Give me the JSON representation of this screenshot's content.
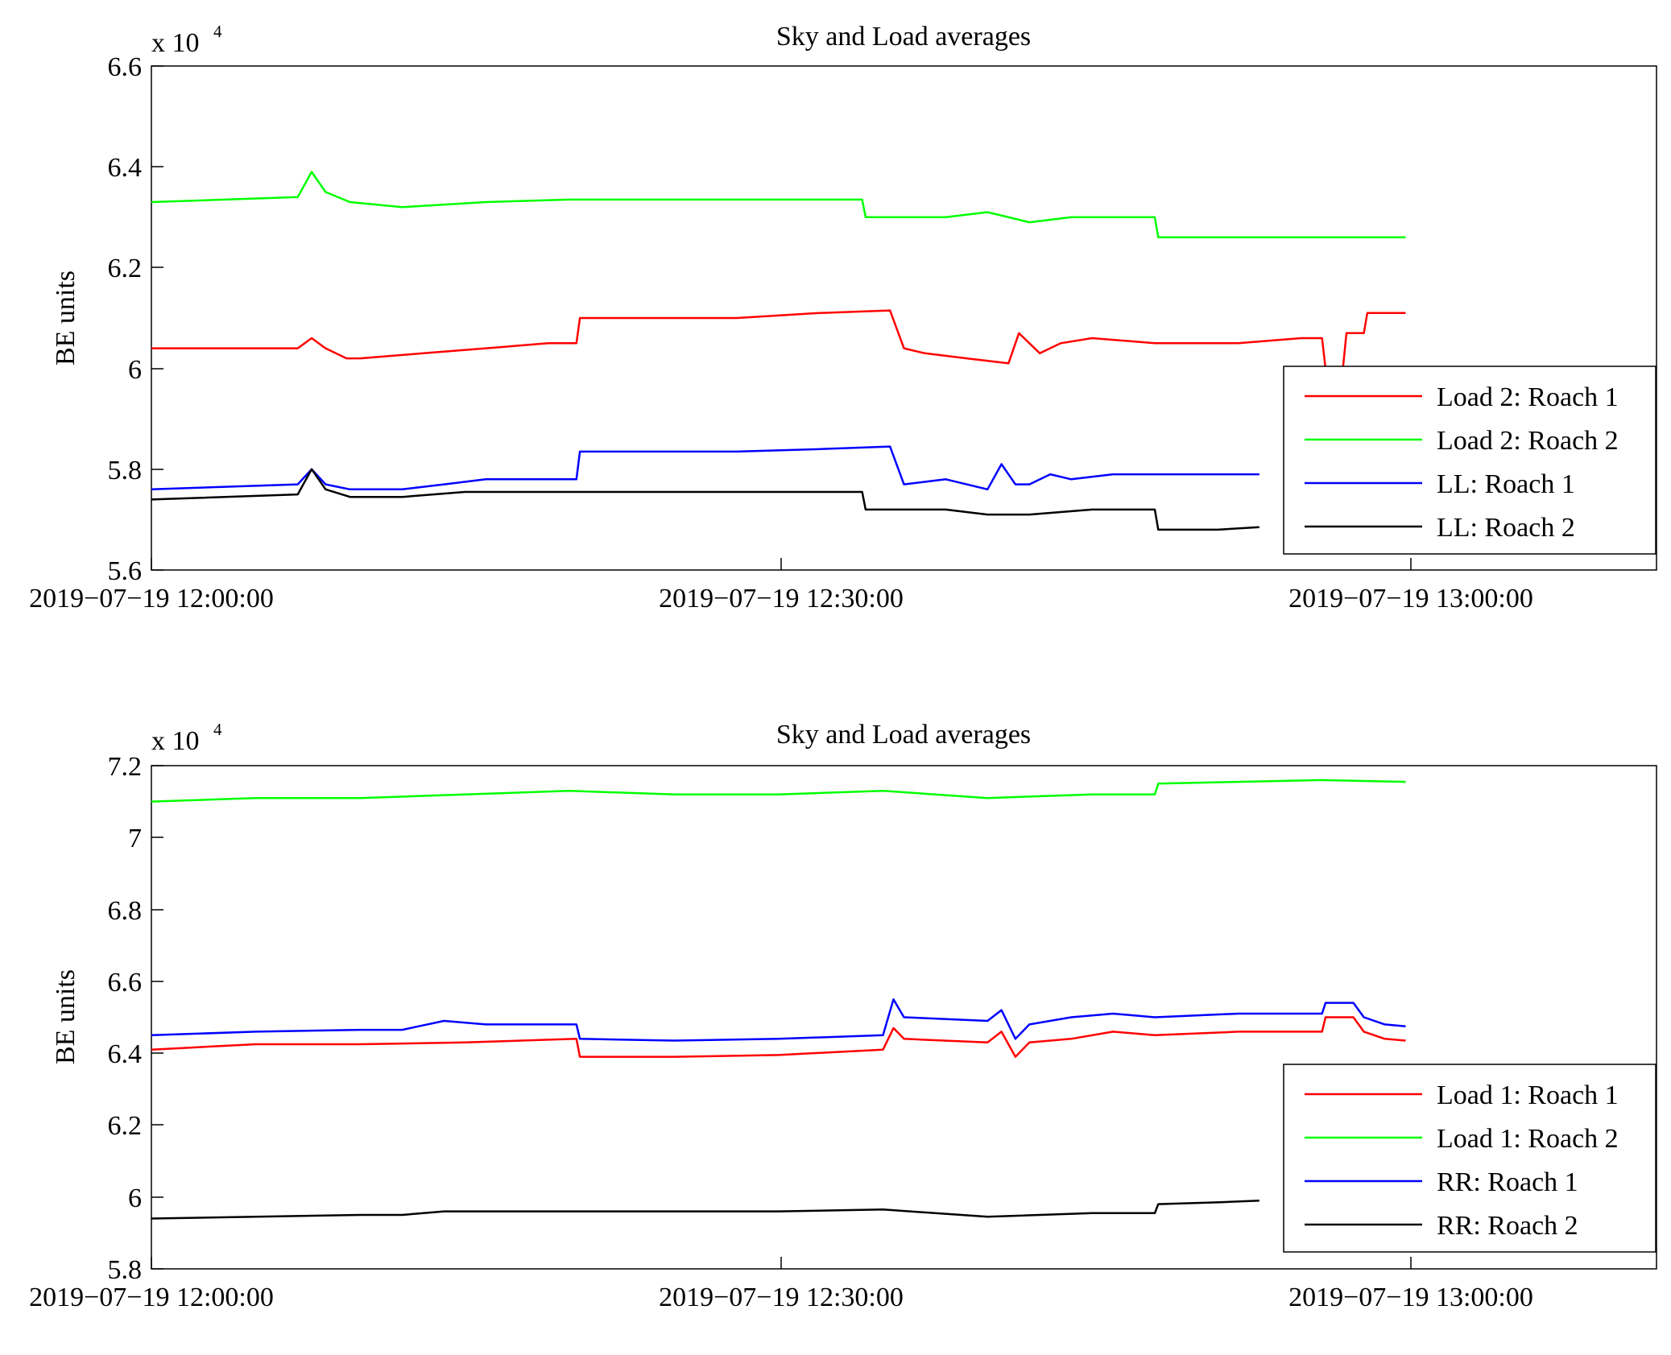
{
  "chart_data": [
    {
      "type": "line",
      "title": "Sky and Load averages",
      "ylabel": "BE units",
      "y_multiplier": "x 10",
      "y_multiplier_exponent": "4",
      "ylim": [
        5.6,
        6.6
      ],
      "yticks": [
        5.6,
        5.8,
        6.0,
        6.2,
        6.4,
        6.6
      ],
      "ytick_labels": [
        "5.6",
        "5.8",
        "6",
        "6.2",
        "6.4",
        "6.6"
      ],
      "xlim": [
        "2019-07-19 12:00:00",
        "2019-07-19 13:12:00"
      ],
      "xticks": [
        "2019-07-19 12:00:00",
        "2019-07-19 12:30:00",
        "2019-07-19 13:00:00"
      ],
      "xtick_labels": [
        "2019−07−19 12:00:00",
        "2019−07−19 12:30:00",
        "2019−07−19 13:00:00"
      ],
      "legend_position": "bottom-right",
      "grid": false,
      "series": [
        {
          "name": "Load 2: Roach 1",
          "color": "#ff0000",
          "x": [
            "2019-07-19 12:00:00",
            "2019-07-19 12:07:00",
            "2019-07-19 12:07:40",
            "2019-07-19 12:08:20",
            "2019-07-19 12:09:20",
            "2019-07-19 12:10:00",
            "2019-07-19 12:13:00",
            "2019-07-19 12:16:00",
            "2019-07-19 12:19:00",
            "2019-07-19 12:20:20",
            "2019-07-19 12:20:30",
            "2019-07-19 12:24:00",
            "2019-07-19 12:28:00",
            "2019-07-19 12:32:00",
            "2019-07-19 12:35:20",
            "2019-07-19 12:36:00",
            "2019-07-19 12:37:00",
            "2019-07-19 12:39:00",
            "2019-07-19 12:41:00",
            "2019-07-19 12:41:30",
            "2019-07-19 12:42:30",
            "2019-07-19 12:43:30",
            "2019-07-19 12:45:00",
            "2019-07-19 12:48:00",
            "2019-07-19 12:52:00",
            "2019-07-19 12:55:00",
            "2019-07-19 12:56:00",
            "2019-07-19 12:56:10",
            "2019-07-19 12:57:00",
            "2019-07-19 12:57:10",
            "2019-07-19 12:58:00",
            "2019-07-19 12:58:10",
            "2019-07-19 12:59:00",
            "2019-07-19 13:00:00"
          ],
          "y": [
            6.04,
            6.04,
            6.06,
            6.04,
            6.02,
            6.02,
            6.03,
            6.04,
            6.05,
            6.05,
            6.1,
            6.1,
            6.1,
            6.11,
            6.115,
            6.04,
            6.03,
            6.02,
            6.01,
            6.07,
            6.03,
            6.05,
            6.06,
            6.05,
            6.05,
            6.06,
            6.06,
            6.0,
            6.0,
            6.07,
            6.07,
            6.11,
            6.11,
            6.11
          ]
        },
        {
          "name": "Load 2: Roach 2",
          "color": "#00ff00",
          "x": [
            "2019-07-19 12:00:00",
            "2019-07-19 12:07:00",
            "2019-07-19 12:07:40",
            "2019-07-19 12:08:20",
            "2019-07-19 12:09:30",
            "2019-07-19 12:12:00",
            "2019-07-19 12:16:00",
            "2019-07-19 12:20:00",
            "2019-07-19 12:25:00",
            "2019-07-19 12:30:00",
            "2019-07-19 12:34:00",
            "2019-07-19 12:34:10",
            "2019-07-19 12:38:00",
            "2019-07-19 12:40:00",
            "2019-07-19 12:42:00",
            "2019-07-19 12:44:00",
            "2019-07-19 12:46:00",
            "2019-07-19 12:48:00",
            "2019-07-19 12:48:10",
            "2019-07-19 12:52:00",
            "2019-07-19 12:56:00",
            "2019-07-19 13:00:00"
          ],
          "y": [
            6.33,
            6.34,
            6.39,
            6.35,
            6.33,
            6.32,
            6.33,
            6.335,
            6.335,
            6.335,
            6.335,
            6.3,
            6.3,
            6.31,
            6.29,
            6.3,
            6.3,
            6.3,
            6.26,
            6.26,
            6.26,
            6.26
          ]
        },
        {
          "name": "LL: Roach 1",
          "color": "#0000ff",
          "x": [
            "2019-07-19 12:00:00",
            "2019-07-19 12:07:00",
            "2019-07-19 12:07:40",
            "2019-07-19 12:08:20",
            "2019-07-19 12:09:30",
            "2019-07-19 12:12:00",
            "2019-07-19 12:14:00",
            "2019-07-19 12:16:00",
            "2019-07-19 12:19:00",
            "2019-07-19 12:20:20",
            "2019-07-19 12:20:30",
            "2019-07-19 12:24:00",
            "2019-07-19 12:28:00",
            "2019-07-19 12:32:00",
            "2019-07-19 12:35:20",
            "2019-07-19 12:36:00",
            "2019-07-19 12:38:00",
            "2019-07-19 12:40:00",
            "2019-07-19 12:40:40",
            "2019-07-19 12:41:20",
            "2019-07-19 12:42:00",
            "2019-07-19 12:43:00",
            "2019-07-19 12:44:00",
            "2019-07-19 12:46:00",
            "2019-07-19 12:50:00",
            "2019-07-19 12:53:00"
          ],
          "y": [
            5.76,
            5.77,
            5.8,
            5.77,
            5.76,
            5.76,
            5.77,
            5.78,
            5.78,
            5.78,
            5.835,
            5.835,
            5.835,
            5.84,
            5.845,
            5.77,
            5.78,
            5.76,
            5.81,
            5.77,
            5.77,
            5.79,
            5.78,
            5.79,
            5.79,
            5.79
          ]
        },
        {
          "name": "LL: Roach 2",
          "color": "#000000",
          "x": [
            "2019-07-19 12:00:00",
            "2019-07-19 12:07:00",
            "2019-07-19 12:07:40",
            "2019-07-19 12:08:20",
            "2019-07-19 12:09:30",
            "2019-07-19 12:12:00",
            "2019-07-19 12:15:00",
            "2019-07-19 12:20:00",
            "2019-07-19 12:25:00",
            "2019-07-19 12:30:00",
            "2019-07-19 12:34:00",
            "2019-07-19 12:34:10",
            "2019-07-19 12:38:00",
            "2019-07-19 12:40:00",
            "2019-07-19 12:42:00",
            "2019-07-19 12:45:00",
            "2019-07-19 12:48:00",
            "2019-07-19 12:48:10",
            "2019-07-19 12:51:00",
            "2019-07-19 12:53:00"
          ],
          "y": [
            5.74,
            5.75,
            5.8,
            5.76,
            5.745,
            5.745,
            5.755,
            5.755,
            5.755,
            5.755,
            5.755,
            5.72,
            5.72,
            5.71,
            5.71,
            5.72,
            5.72,
            5.68,
            5.68,
            5.685
          ]
        }
      ]
    },
    {
      "type": "line",
      "title": "Sky and Load averages",
      "ylabel": "BE units",
      "y_multiplier": "x 10",
      "y_multiplier_exponent": "4",
      "ylim": [
        5.8,
        7.2
      ],
      "yticks": [
        5.8,
        6.0,
        6.2,
        6.4,
        6.6,
        6.8,
        7.0,
        7.2
      ],
      "ytick_labels": [
        "5.8",
        "6",
        "6.2",
        "6.4",
        "6.6",
        "6.8",
        "7",
        "7.2"
      ],
      "xlim": [
        "2019-07-19 12:00:00",
        "2019-07-19 13:12:00"
      ],
      "xticks": [
        "2019-07-19 12:00:00",
        "2019-07-19 12:30:00",
        "2019-07-19 13:00:00"
      ],
      "xtick_labels": [
        "2019−07−19 12:00:00",
        "2019−07−19 12:30:00",
        "2019−07−19 13:00:00"
      ],
      "legend_position": "bottom-right",
      "grid": false,
      "series": [
        {
          "name": "Load 1: Roach 1",
          "color": "#ff0000",
          "x": [
            "2019-07-19 12:00:00",
            "2019-07-19 12:05:00",
            "2019-07-19 12:10:00",
            "2019-07-19 12:15:00",
            "2019-07-19 12:20:20",
            "2019-07-19 12:20:30",
            "2019-07-19 12:25:00",
            "2019-07-19 12:30:00",
            "2019-07-19 12:35:00",
            "2019-07-19 12:35:30",
            "2019-07-19 12:36:00",
            "2019-07-19 12:40:00",
            "2019-07-19 12:40:40",
            "2019-07-19 12:41:20",
            "2019-07-19 12:42:00",
            "2019-07-19 12:44:00",
            "2019-07-19 12:46:00",
            "2019-07-19 12:48:00",
            "2019-07-19 12:52:00",
            "2019-07-19 12:56:00",
            "2019-07-19 12:56:10",
            "2019-07-19 12:57:30",
            "2019-07-19 12:58:00",
            "2019-07-19 12:59:00",
            "2019-07-19 13:00:00"
          ],
          "y": [
            6.41,
            6.425,
            6.425,
            6.43,
            6.44,
            6.39,
            6.39,
            6.395,
            6.41,
            6.47,
            6.44,
            6.43,
            6.46,
            6.39,
            6.43,
            6.44,
            6.46,
            6.45,
            6.46,
            6.46,
            6.5,
            6.5,
            6.46,
            6.44,
            6.435
          ]
        },
        {
          "name": "Load 1: Roach 2",
          "color": "#00ff00",
          "x": [
            "2019-07-19 12:00:00",
            "2019-07-19 12:05:00",
            "2019-07-19 12:10:00",
            "2019-07-19 12:15:00",
            "2019-07-19 12:20:00",
            "2019-07-19 12:25:00",
            "2019-07-19 12:30:00",
            "2019-07-19 12:35:00",
            "2019-07-19 12:40:00",
            "2019-07-19 12:45:00",
            "2019-07-19 12:48:00",
            "2019-07-19 12:48:10",
            "2019-07-19 12:52:00",
            "2019-07-19 12:56:00",
            "2019-07-19 13:00:00"
          ],
          "y": [
            7.1,
            7.11,
            7.11,
            7.12,
            7.13,
            7.12,
            7.12,
            7.13,
            7.11,
            7.12,
            7.12,
            7.15,
            7.155,
            7.16,
            7.155
          ]
        },
        {
          "name": "RR: Roach 1",
          "color": "#0000ff",
          "x": [
            "2019-07-19 12:00:00",
            "2019-07-19 12:05:00",
            "2019-07-19 12:10:00",
            "2019-07-19 12:12:00",
            "2019-07-19 12:14:00",
            "2019-07-19 12:16:00",
            "2019-07-19 12:20:20",
            "2019-07-19 12:20:30",
            "2019-07-19 12:25:00",
            "2019-07-19 12:30:00",
            "2019-07-19 12:35:00",
            "2019-07-19 12:35:30",
            "2019-07-19 12:36:00",
            "2019-07-19 12:40:00",
            "2019-07-19 12:40:40",
            "2019-07-19 12:41:20",
            "2019-07-19 12:42:00",
            "2019-07-19 12:44:00",
            "2019-07-19 12:46:00",
            "2019-07-19 12:48:00",
            "2019-07-19 12:52:00",
            "2019-07-19 12:56:00",
            "2019-07-19 12:56:10",
            "2019-07-19 12:57:30",
            "2019-07-19 12:58:00",
            "2019-07-19 12:59:00",
            "2019-07-19 13:00:00"
          ],
          "y": [
            6.45,
            6.46,
            6.465,
            6.465,
            6.49,
            6.48,
            6.48,
            6.44,
            6.435,
            6.44,
            6.45,
            6.55,
            6.5,
            6.49,
            6.52,
            6.44,
            6.48,
            6.5,
            6.51,
            6.5,
            6.51,
            6.51,
            6.54,
            6.54,
            6.5,
            6.48,
            6.475
          ]
        },
        {
          "name": "RR: Roach 2",
          "color": "#000000",
          "x": [
            "2019-07-19 12:00:00",
            "2019-07-19 12:05:00",
            "2019-07-19 12:10:00",
            "2019-07-19 12:12:00",
            "2019-07-19 12:14:00",
            "2019-07-19 12:20:00",
            "2019-07-19 12:30:00",
            "2019-07-19 12:35:00",
            "2019-07-19 12:40:00",
            "2019-07-19 12:45:00",
            "2019-07-19 12:48:00",
            "2019-07-19 12:48:10",
            "2019-07-19 12:51:00",
            "2019-07-19 12:53:00"
          ],
          "y": [
            5.94,
            5.945,
            5.95,
            5.95,
            5.96,
            5.96,
            5.96,
            5.965,
            5.945,
            5.955,
            5.955,
            5.98,
            5.985,
            5.99
          ]
        }
      ]
    }
  ]
}
